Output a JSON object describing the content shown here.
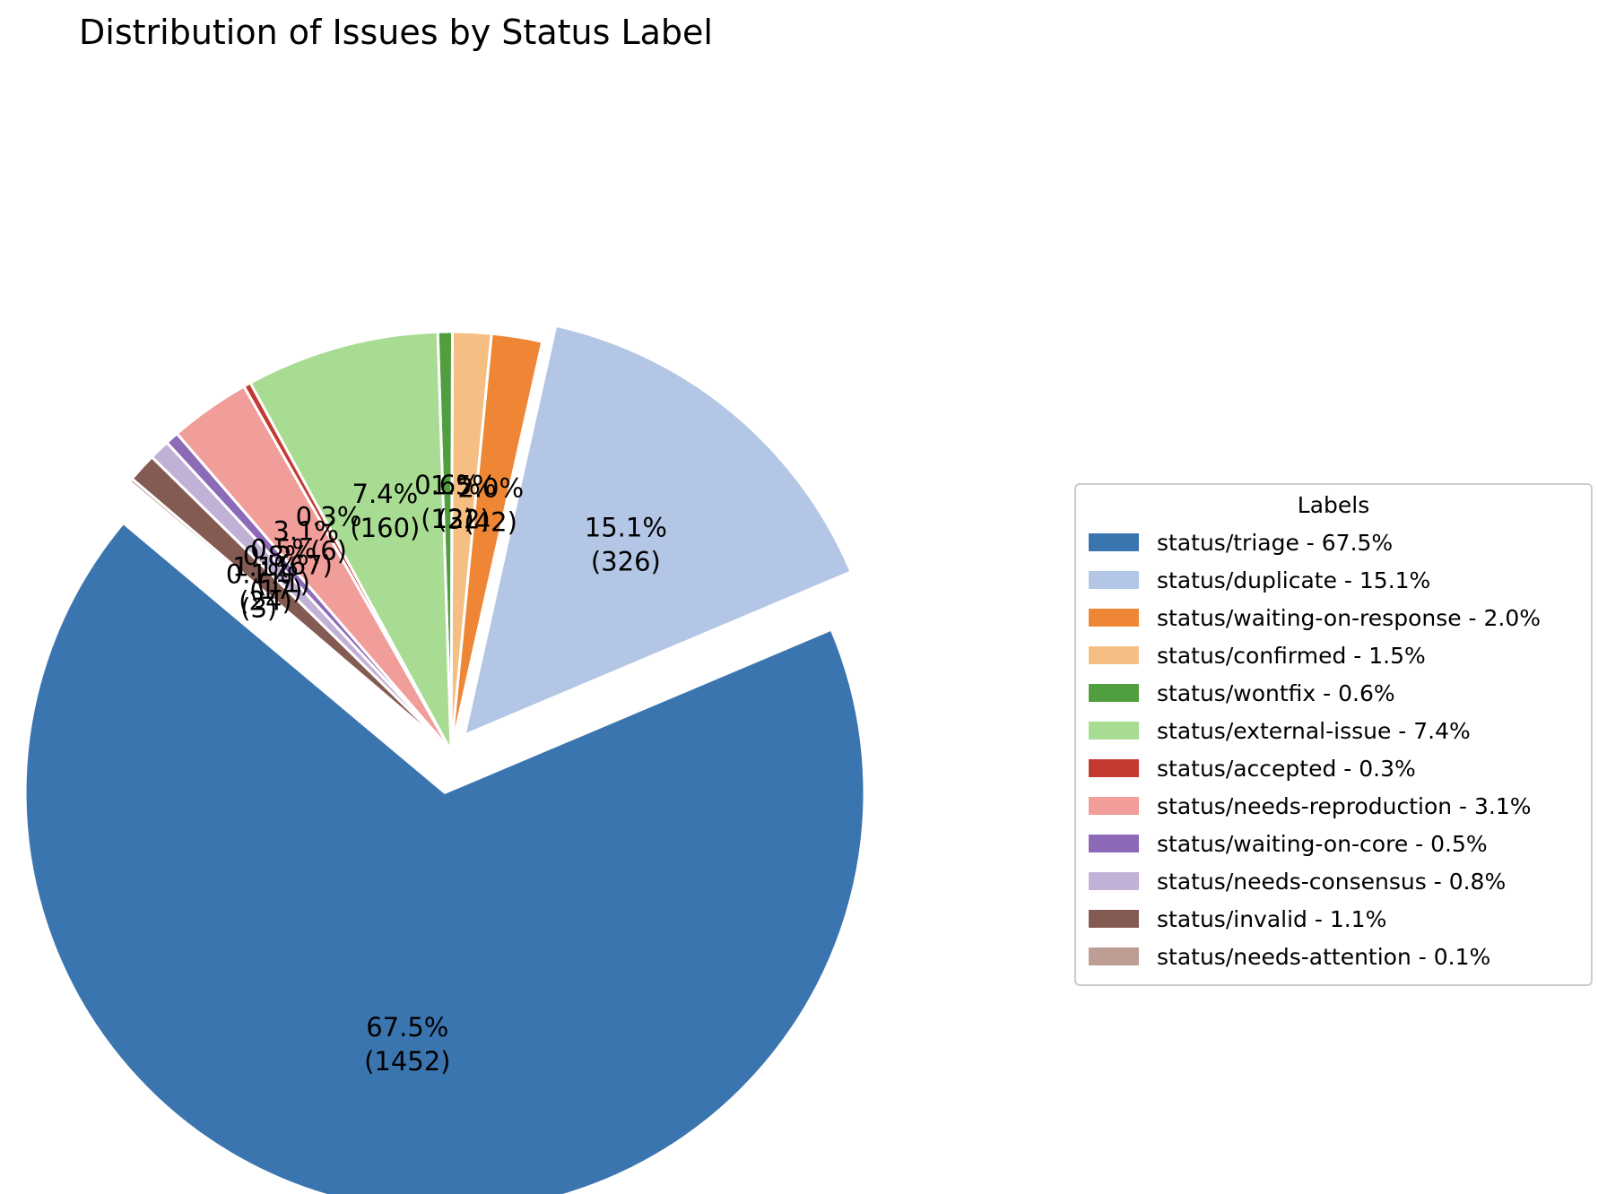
{
  "chart_data": {
    "type": "pie",
    "title": "Distribution of Issues by Status Label",
    "legend_title": "Labels",
    "legend_placement": "right",
    "start_angle_deg": 140,
    "slices": [
      {
        "label": "status/triage",
        "value": 1452,
        "percent_label": "67.5%",
        "legend": "status/triage - 67.5%",
        "color": "#3b75af",
        "explode": 0.1
      },
      {
        "label": "status/duplicate",
        "value": 326,
        "percent_label": "15.1%",
        "legend": "status/duplicate - 15.1%",
        "color": "#b3c6e5",
        "explode": 0.05
      },
      {
        "label": "status/waiting-on-response",
        "value": 42,
        "percent_label": "2.0%",
        "legend": "status/waiting-on-response - 2.0%",
        "color": "#ef8636",
        "explode": 0
      },
      {
        "label": "status/confirmed",
        "value": 32,
        "percent_label": "1.5%",
        "legend": "status/confirmed - 1.5%",
        "color": "#f5be82",
        "explode": 0
      },
      {
        "label": "status/wontfix",
        "value": 12,
        "percent_label": "0.6%",
        "legend": "status/wontfix - 0.6%",
        "color": "#519e3e",
        "explode": 0
      },
      {
        "label": "status/external-issue",
        "value": 160,
        "percent_label": "7.4%",
        "legend": "status/external-issue - 7.4%",
        "color": "#a8dc93",
        "explode": 0
      },
      {
        "label": "status/accepted",
        "value": 6,
        "percent_label": "0.3%",
        "legend": "status/accepted - 0.3%",
        "color": "#c43932",
        "explode": 0
      },
      {
        "label": "status/needs-reproduction",
        "value": 67,
        "percent_label": "3.1%",
        "legend": "status/needs-reproduction - 3.1%",
        "color": "#f19d99",
        "explode": 0
      },
      {
        "label": "status/waiting-on-core",
        "value": 11,
        "percent_label": "0.5%",
        "legend": "status/waiting-on-core - 0.5%",
        "color": "#8d6ab8",
        "explode": 0
      },
      {
        "label": "status/needs-consensus",
        "value": 17,
        "percent_label": "0.8%",
        "legend": "status/needs-consensus - 0.8%",
        "color": "#c2b1d6",
        "explode": 0
      },
      {
        "label": "status/invalid",
        "value": 24,
        "percent_label": "1.1%",
        "legend": "status/invalid - 1.1%",
        "color": "#845b53",
        "explode": 0
      },
      {
        "label": "status/needs-attention",
        "value": 3,
        "percent_label": "0.1%",
        "legend": "status/needs-attention - 0.1%",
        "color": "#be9d94",
        "explode": 0
      }
    ]
  }
}
